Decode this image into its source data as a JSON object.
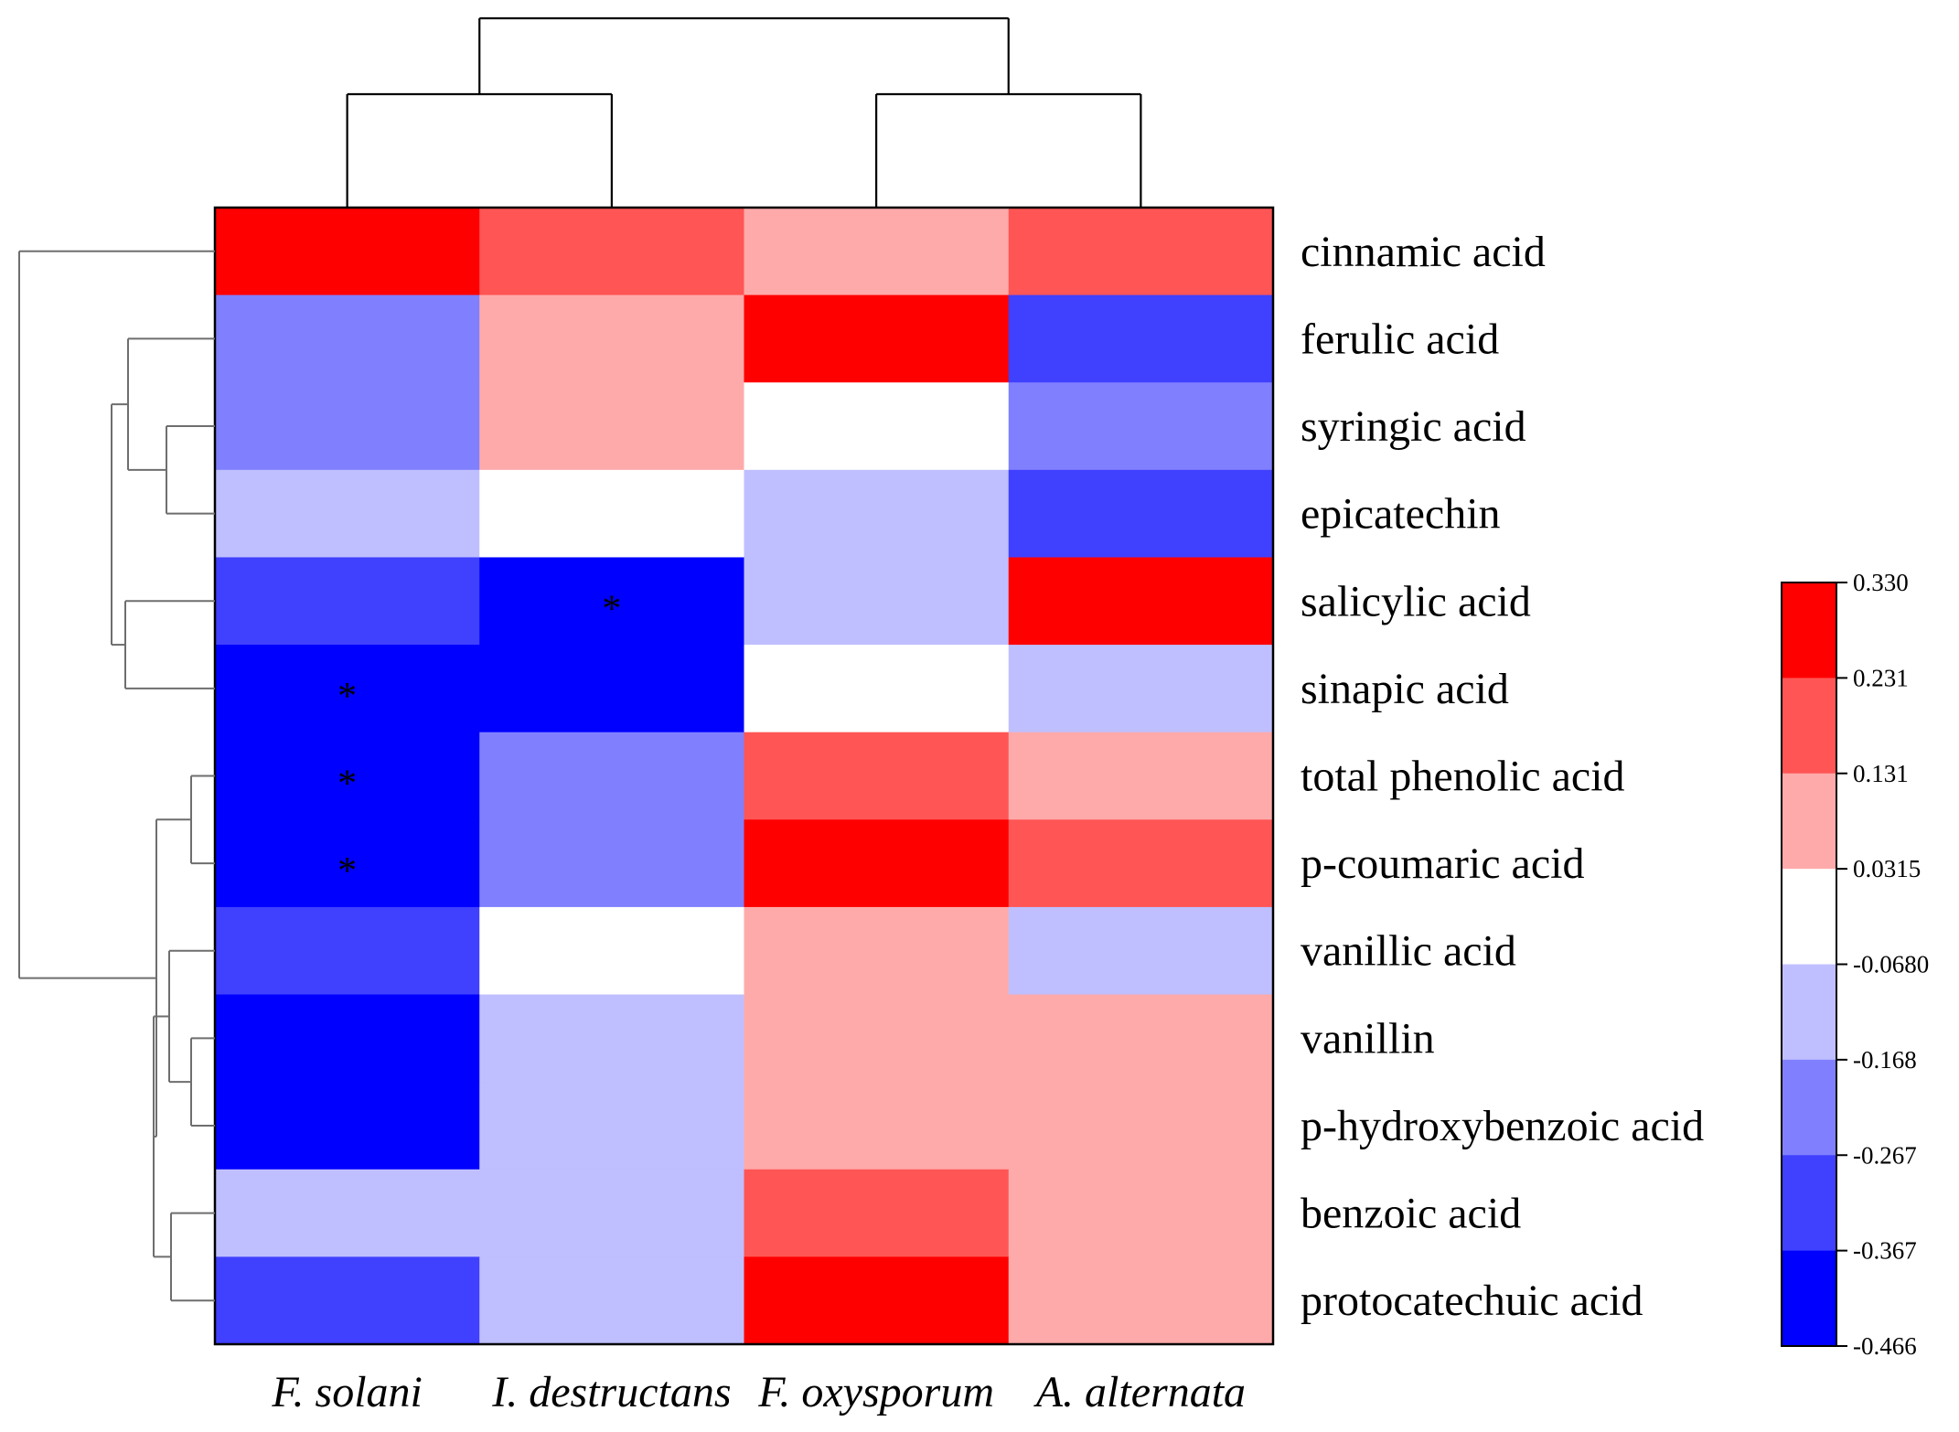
{
  "chart_data": {
    "type": "heatmap",
    "title": "",
    "columns": [
      "F. solani",
      "I. destructans",
      "F. oxysporum",
      "A. alternata"
    ],
    "rows": [
      "cinnamic acid",
      "ferulic acid",
      "syringic acid",
      "epicatechin",
      "salicylic acid",
      "sinapic acid",
      "total phenolic acid",
      "p-coumaric acid",
      "vanillic acid",
      "vanillin",
      "p-hydroxybenzoic acid",
      "benzoic acid",
      "protocatechuic acid"
    ],
    "values": [
      [
        0.28,
        0.18,
        0.08,
        0.18
      ],
      [
        -0.22,
        0.08,
        0.28,
        -0.32
      ],
      [
        -0.22,
        0.08,
        -0.02,
        -0.22
      ],
      [
        -0.12,
        -0.02,
        -0.12,
        -0.32
      ],
      [
        -0.32,
        -0.42,
        -0.12,
        0.28
      ],
      [
        -0.42,
        -0.42,
        -0.02,
        -0.12
      ],
      [
        -0.42,
        -0.22,
        0.18,
        0.08
      ],
      [
        -0.42,
        -0.22,
        0.28,
        0.18
      ],
      [
        -0.32,
        -0.02,
        0.08,
        -0.12
      ],
      [
        -0.42,
        -0.12,
        0.08,
        0.08
      ],
      [
        -0.42,
        -0.12,
        0.08,
        0.08
      ],
      [
        -0.12,
        -0.12,
        0.18,
        0.08
      ],
      [
        -0.32,
        -0.12,
        0.28,
        0.08
      ]
    ],
    "significance": [
      [
        "",
        "",
        "",
        ""
      ],
      [
        "",
        "",
        "",
        ""
      ],
      [
        "",
        "",
        "",
        ""
      ],
      [
        "",
        "",
        "",
        ""
      ],
      [
        "",
        "*",
        "",
        ""
      ],
      [
        "*",
        "",
        "",
        ""
      ],
      [
        "*",
        "",
        "",
        ""
      ],
      [
        "*",
        "",
        "",
        ""
      ],
      [
        "",
        "",
        "",
        ""
      ],
      [
        "",
        "",
        "",
        ""
      ],
      [
        "",
        "",
        "",
        ""
      ],
      [
        "",
        "",
        "",
        ""
      ],
      [
        "",
        "",
        "",
        ""
      ]
    ],
    "legend": {
      "range": [
        -0.466,
        0.33
      ],
      "tick_labels": [
        "0.330",
        "0.231",
        "0.131",
        "0.0315",
        "-0.0680",
        "-0.168",
        "-0.267",
        "-0.367",
        "-0.466"
      ],
      "colors_top_to_bottom": [
        "#ff0000",
        "#ff5555",
        "#ffaaaa",
        "#ffffff",
        "#bfbfff",
        "#8080ff",
        "#4040ff",
        "#0000ff"
      ]
    },
    "column_dendrogram": {
      "leaf_order": [
        "F. solani",
        "I. destructans",
        "F. oxysporum",
        "A. alternata"
      ],
      "merges": [
        [
          0,
          1
        ],
        [
          2,
          3
        ],
        [
          4,
          5
        ]
      ]
    },
    "row_dendrogram": {
      "merges": [
        [
          2,
          3
        ],
        [
          1,
          13
        ],
        [
          6,
          7
        ],
        [
          9,
          10
        ],
        [
          8,
          16
        ],
        [
          11,
          12
        ],
        [
          17,
          18
        ],
        [
          4,
          5
        ],
        [
          15,
          19
        ],
        [
          14,
          20
        ],
        [
          0,
          21
        ]
      ]
    }
  }
}
